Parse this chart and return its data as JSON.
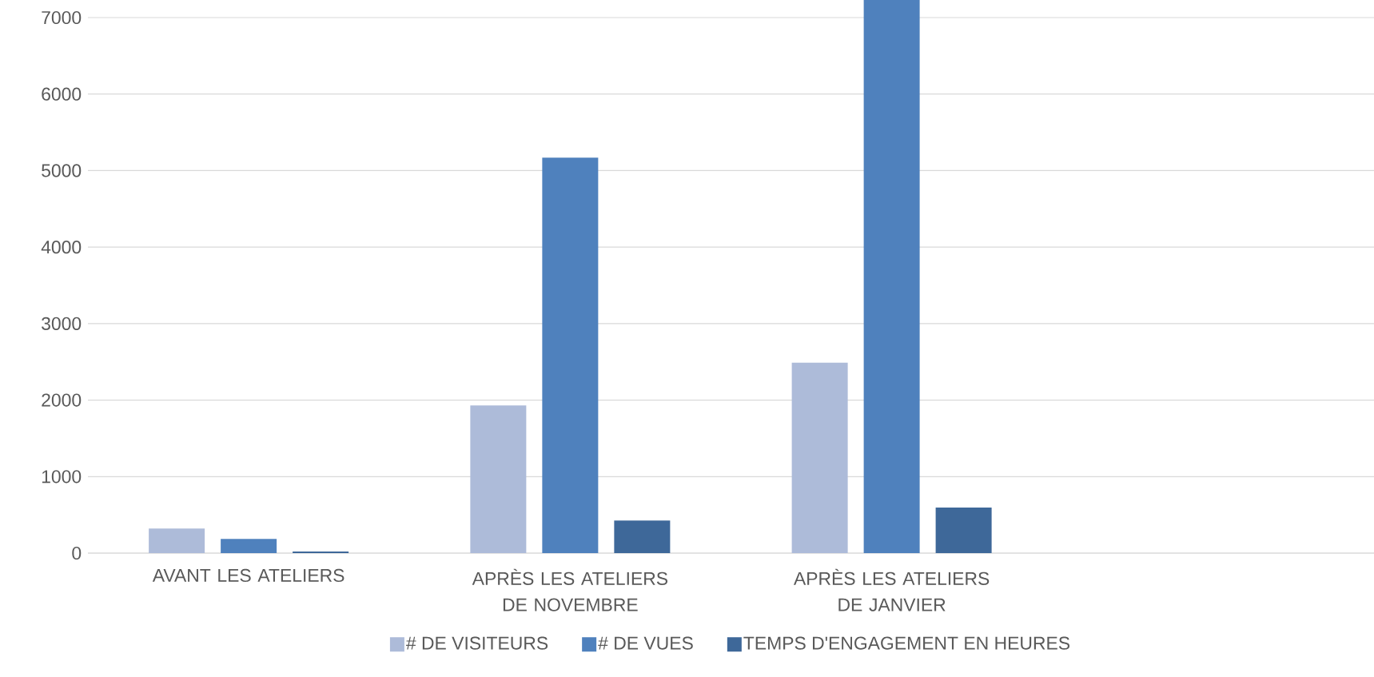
{
  "chart_data": {
    "type": "bar",
    "categories": [
      "AVANT LES ATELIERS",
      "APRÈS LES ATELIERS DE NOVEMBRE",
      "APRÈS LES ATELIERS DE JANVIER",
      null
    ],
    "series": [
      {
        "name": "# DE VISITEURS",
        "color": "#adbbd9",
        "values": [
          320,
          1930,
          2490,
          null
        ]
      },
      {
        "name": "# DE VUES",
        "color": "#4f81bd",
        "values": [
          185,
          5170,
          7230,
          null
        ]
      },
      {
        "name": "TEMPS D'ENGAGEMENT EN HEURES",
        "color": "#3e6899",
        "values": [
          20,
          425,
          595,
          null
        ]
      }
    ],
    "ylim": [
      0,
      7230
    ],
    "yticks": [
      0,
      1000,
      2000,
      3000,
      4000,
      5000,
      6000,
      7000
    ],
    "grid": "y",
    "legend": "bottom"
  }
}
